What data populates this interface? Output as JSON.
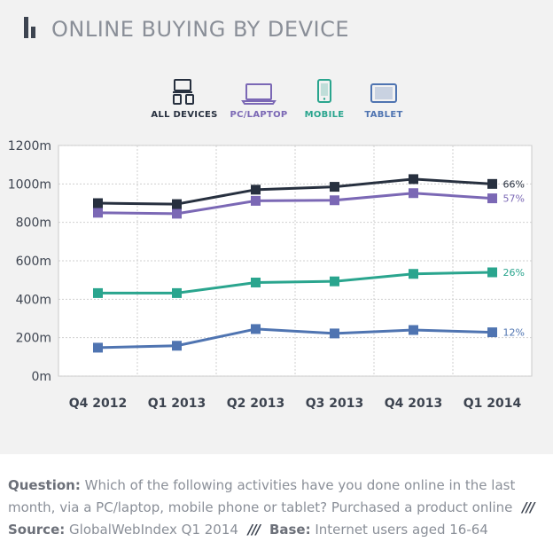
{
  "header": {
    "title": "ONLINE BUYING BY DEVICE",
    "icon": "bar-chart-icon"
  },
  "legend": {
    "items": [
      {
        "label": "ALL DEVICES",
        "icon": "all-devices-icon",
        "color": "#27303f"
      },
      {
        "label": "PC/LAPTOP",
        "icon": "laptop-icon",
        "color": "#7b68b5"
      },
      {
        "label": "MOBILE",
        "icon": "mobile-icon",
        "color": "#2aa58e"
      },
      {
        "label": "TABLET",
        "icon": "tablet-icon",
        "color": "#4f74b1"
      }
    ]
  },
  "chart_data": {
    "type": "line",
    "categories": [
      "Q4 2012",
      "Q1 2013",
      "Q2 2013",
      "Q3 2013",
      "Q4 2013",
      "Q1 2014"
    ],
    "ylim": [
      0,
      1200
    ],
    "yticks": [
      0,
      200,
      400,
      600,
      800,
      1000,
      1200
    ],
    "ytick_labels": [
      "0m",
      "200m",
      "400m",
      "600m",
      "800m",
      "1000m",
      "1200m"
    ],
    "grid": true,
    "series": [
      {
        "name": "ALL DEVICES",
        "color": "#27303f",
        "values": [
          900,
          895,
          970,
          985,
          1025,
          1000
        ],
        "end_label": "66%"
      },
      {
        "name": "PC/LAPTOP",
        "color": "#7b68b5",
        "values": [
          850,
          845,
          912,
          915,
          952,
          925
        ],
        "end_label": "57%"
      },
      {
        "name": "MOBILE",
        "color": "#2aa58e",
        "values": [
          432,
          432,
          487,
          493,
          532,
          540
        ],
        "end_label": "26%"
      },
      {
        "name": "TABLET",
        "color": "#4f74b1",
        "values": [
          148,
          158,
          245,
          222,
          240,
          228
        ],
        "end_label": "12%"
      }
    ]
  },
  "footer": {
    "question_label": "Question:",
    "question_text_1": "Which of the following activities have you done online in the last",
    "question_text_2": "month, via a PC/laptop, mobile phone or tablet? Purchased a product online",
    "separator": "///",
    "source_label": "Source:",
    "source_text": "GlobalWebIndex Q1 2014",
    "base_label": "Base:",
    "base_text": "Internet users aged 16-64"
  }
}
